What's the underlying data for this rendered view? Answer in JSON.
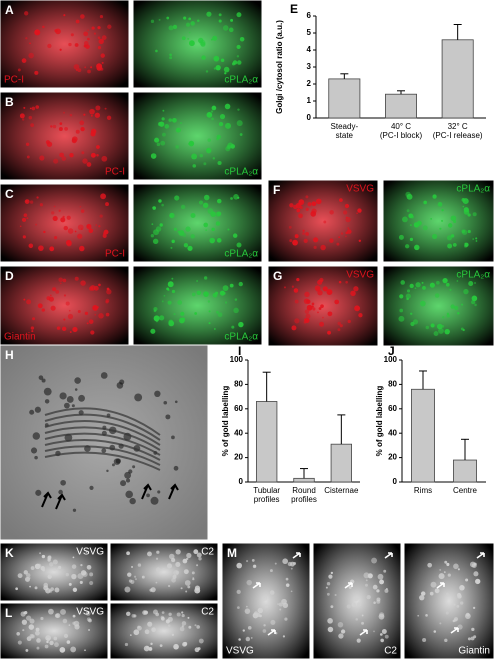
{
  "chart_data": [
    {
      "type": "bar",
      "label": "E",
      "ylabel": "Golgi /cytosol ratio (a.u.)",
      "categories": [
        "Steady-\nstate",
        "40° C\n(PC-I block)",
        "32° C\n(PC-I release)"
      ],
      "values": [
        2.3,
        1.4,
        4.6
      ],
      "errors": [
        0.3,
        0.2,
        0.9
      ],
      "color": "#c8c8c8",
      "ylim": [
        0,
        6
      ],
      "yticks": [
        0,
        1,
        2,
        3,
        4,
        5,
        6
      ]
    },
    {
      "type": "bar",
      "label": "I",
      "ylabel": "% of gold labelling",
      "categories": [
        "Tubular\nprofiles",
        "Round\nprofiles",
        "Cisternae"
      ],
      "values": [
        66,
        3,
        31
      ],
      "errors": [
        24,
        8,
        24
      ],
      "color": "#c8c8c8",
      "ylim": [
        0,
        100
      ],
      "yticks": [
        0,
        20,
        40,
        60,
        80,
        100
      ]
    },
    {
      "type": "bar",
      "label": "J",
      "ylabel": "% of gold labelling",
      "categories": [
        "Rims",
        "Centre"
      ],
      "values": [
        76,
        18
      ],
      "errors": [
        15,
        17
      ],
      "color": "#c8c8c8",
      "ylim": [
        0,
        100
      ],
      "yticks": [
        0,
        20,
        40,
        60,
        80,
        100
      ]
    }
  ],
  "panels": [
    {
      "label": "A",
      "images": [
        {
          "text": "PC-I",
          "color": "#e0141e"
        },
        {
          "text": "cPLA₂α",
          "color": "#28c83c"
        }
      ]
    },
    {
      "label": "B",
      "images": [
        {
          "text": "PC-I",
          "color": "#e0141e"
        },
        {
          "text": "cPLA₂α",
          "color": "#28c83c"
        }
      ]
    },
    {
      "label": "C",
      "images": [
        {
          "text": "PC-I",
          "color": "#e0141e"
        },
        {
          "text": "cPLA₂α",
          "color": "#28c83c"
        }
      ]
    },
    {
      "label": "D",
      "images": [
        {
          "text": "Giantin",
          "color": "#e0141e"
        },
        {
          "text": "cPLA₂α",
          "color": "#28c83c"
        }
      ]
    },
    {
      "label": "F",
      "images": [
        {
          "text": "VSVG",
          "color": "#e0141e"
        },
        {
          "text": "cPLA₂α",
          "color": "#28c83c"
        }
      ]
    },
    {
      "label": "G",
      "images": [
        {
          "text": "VSVG",
          "color": "#e0141e"
        },
        {
          "text": "cPLA₂α",
          "color": "#28c83c"
        }
      ]
    },
    {
      "label": "H",
      "images": [
        {
          "color": "#a8a8a8"
        }
      ]
    },
    {
      "label": "K",
      "images": [
        {
          "text": "VSVG",
          "color": "#d0d0d0"
        },
        {
          "text": "C2",
          "color": "#d0d0d0"
        }
      ]
    },
    {
      "label": "L",
      "images": [
        {
          "text": "VSVG",
          "color": "#d0d0d0"
        },
        {
          "text": "C2",
          "color": "#d0d0d0"
        }
      ]
    },
    {
      "label": "M",
      "images": [
        {
          "text": "VSVG",
          "color": "#d0d0d0"
        },
        {
          "text": "C2",
          "color": "#d0d0d0"
        },
        {
          "text": "Giantin",
          "color": "#d0d0d0"
        }
      ]
    }
  ]
}
